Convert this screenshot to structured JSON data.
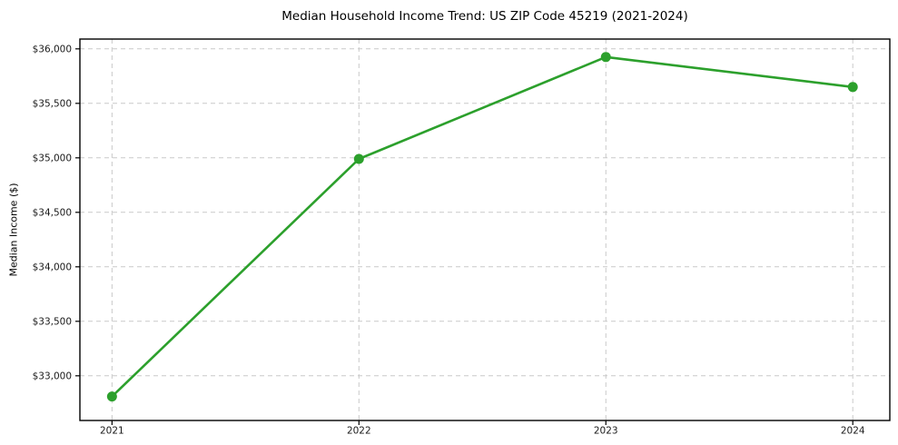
{
  "figure": {
    "background": "#ffffff"
  },
  "chart_data": {
    "type": "line",
    "title": "Median Household Income Trend: US ZIP Code 45219 (2021-2024)",
    "xlabel": "",
    "ylabel": "Median Income ($)",
    "x": [
      2021,
      2022,
      2023,
      2024
    ],
    "series": [
      {
        "values": [
          32810,
          34990,
          35925,
          35650
        ],
        "color": "#2ca02c",
        "marker": "circle"
      }
    ],
    "xticks": {
      "values": [
        2021,
        2022,
        2023,
        2024
      ],
      "labels": [
        "2021",
        "2022",
        "2023",
        "2024"
      ]
    },
    "yticks": {
      "values": [
        33000,
        33500,
        34000,
        34500,
        35000,
        35500,
        36000
      ],
      "labels": [
        "$33,000",
        "$33,500",
        "$34,000",
        "$34,500",
        "$35,000",
        "$35,500",
        "$36,000"
      ]
    },
    "xlim": [
      2020.87,
      2024.15
    ],
    "ylim": [
      32590,
      36090
    ],
    "grid": {
      "show": true,
      "color": "#c9c9c9",
      "style": "dashed"
    },
    "legend": {
      "show": false
    },
    "axes_color": "#000000",
    "text_color": "#1a1a1a",
    "line_width": 2.6,
    "marker_radius": 5.5
  }
}
